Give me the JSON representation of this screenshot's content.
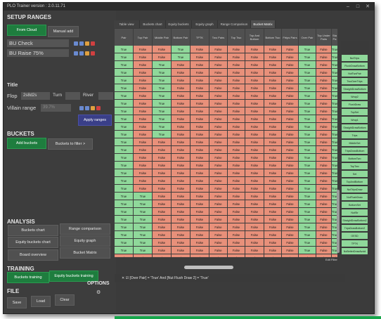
{
  "window": {
    "title": "PLO Trainer version : 2.0.11.71"
  },
  "setup": {
    "section": "SETUP RANGES",
    "from_cloud": "From Cloud",
    "manual_add": "Manual add",
    "ranges": [
      "BU Check",
      "BU Raise 75%"
    ]
  },
  "title_section": {
    "label": "Title"
  },
  "board": {
    "flop_label": "Flop",
    "flop_value": "2s8d2s",
    "turn_label": "Turn",
    "river_label": "River"
  },
  "villain": {
    "label": "Villain range",
    "value": "39.7%"
  },
  "apply_ranges": "Apply ranges",
  "buckets": {
    "section": "BUCKETS",
    "add": "Add buckets",
    "to_filter": "Buckets to filter >"
  },
  "analysis": {
    "section": "ANALYSIS",
    "buttons": [
      "Buckets chart",
      "Range comparison",
      "Equity buckets chart",
      "Equity graph",
      "Board overview",
      "Bucket Matrix"
    ]
  },
  "training": {
    "section": "TRAINING",
    "buckets_training": "Buckets training",
    "equity_training": "Equity buckets training"
  },
  "options": {
    "label": "OPTIONS"
  },
  "file": {
    "section": "FILE",
    "save": "Save",
    "load": "Load",
    "clear": "Clear"
  },
  "tabs": [
    "Table view",
    "Buckets chart",
    "Equity buckets",
    "Equity graph",
    "Range Comparison",
    "Bucket Matrix"
  ],
  "grid": {
    "headers": [
      "Pair",
      "Top Pair",
      "Middle Pair",
      "Bottom Pair",
      "TPTK",
      "Two Pairs",
      "Top Two",
      "Top And Bottom",
      "Bottom Two",
      "Ftrips Pairs",
      "Over Pair",
      "Top Under Pairs",
      "Sta Pa"
    ],
    "rows": [
      [
        1,
        0,
        0,
        1,
        0,
        0,
        0,
        0,
        0,
        0,
        1,
        0,
        1
      ],
      [
        1,
        0,
        0,
        1,
        0,
        0,
        0,
        0,
        0,
        0,
        1,
        0,
        1
      ],
      [
        1,
        0,
        1,
        0,
        0,
        0,
        0,
        0,
        0,
        0,
        1,
        0,
        1
      ],
      [
        1,
        0,
        1,
        0,
        0,
        0,
        0,
        0,
        0,
        0,
        1,
        0,
        1
      ],
      [
        1,
        0,
        1,
        0,
        0,
        0,
        0,
        0,
        0,
        0,
        1,
        0,
        1
      ],
      [
        1,
        0,
        1,
        0,
        0,
        0,
        0,
        0,
        0,
        0,
        1,
        0,
        1
      ],
      [
        1,
        0,
        1,
        0,
        0,
        0,
        0,
        0,
        0,
        0,
        1,
        0,
        1
      ],
      [
        1,
        0,
        1,
        0,
        0,
        0,
        0,
        0,
        0,
        0,
        1,
        0,
        1
      ],
      [
        1,
        0,
        1,
        0,
        0,
        0,
        0,
        0,
        0,
        0,
        1,
        0,
        1
      ],
      [
        1,
        0,
        1,
        0,
        0,
        0,
        0,
        0,
        0,
        0,
        1,
        0,
        1
      ],
      [
        1,
        0,
        1,
        0,
        0,
        0,
        0,
        0,
        0,
        0,
        1,
        0,
        1
      ],
      [
        1,
        0,
        1,
        0,
        0,
        0,
        0,
        0,
        0,
        0,
        1,
        0,
        1
      ],
      [
        1,
        0,
        0,
        0,
        0,
        0,
        0,
        0,
        0,
        0,
        1,
        0,
        1
      ],
      [
        1,
        0,
        0,
        0,
        0,
        0,
        0,
        0,
        0,
        0,
        1,
        0,
        1
      ],
      [
        1,
        0,
        0,
        0,
        0,
        0,
        0,
        0,
        0,
        0,
        1,
        0,
        1
      ],
      [
        1,
        0,
        0,
        0,
        0,
        0,
        0,
        0,
        0,
        0,
        1,
        0,
        1
      ],
      [
        1,
        0,
        0,
        0,
        0,
        0,
        0,
        0,
        0,
        0,
        1,
        0,
        1
      ],
      [
        1,
        0,
        0,
        0,
        0,
        0,
        0,
        0,
        0,
        0,
        1,
        0,
        1
      ],
      [
        1,
        0,
        0,
        0,
        0,
        0,
        0,
        0,
        0,
        0,
        1,
        0,
        1
      ],
      [
        1,
        1,
        0,
        0,
        0,
        0,
        0,
        0,
        0,
        0,
        1,
        0,
        1
      ],
      [
        1,
        1,
        0,
        0,
        0,
        0,
        0,
        0,
        0,
        0,
        1,
        0,
        1
      ],
      [
        1,
        1,
        0,
        0,
        0,
        0,
        0,
        0,
        0,
        0,
        1,
        0,
        1
      ],
      [
        1,
        1,
        0,
        0,
        0,
        0,
        0,
        0,
        0,
        0,
        1,
        0,
        1
      ],
      [
        1,
        1,
        0,
        0,
        0,
        0,
        0,
        0,
        0,
        0,
        1,
        0,
        1
      ],
      [
        1,
        1,
        0,
        0,
        0,
        0,
        0,
        0,
        0,
        0,
        1,
        0,
        1
      ],
      [
        1,
        1,
        0,
        0,
        0,
        0,
        0,
        0,
        0,
        0,
        1,
        0,
        1
      ],
      [
        1,
        1,
        0,
        0,
        0,
        0,
        0,
        0,
        0,
        0,
        1,
        0,
        1
      ],
      [
        0,
        0,
        0,
        0,
        0,
        0,
        0,
        0,
        0,
        0,
        0,
        0,
        0
      ]
    ],
    "true_label": "True",
    "false_label": "False"
  },
  "right_list": {
    "header": "Ftps Pairs Party",
    "items": [
      "NutTrips",
      "FlushDrawBottom",
      "NutTwoPair",
      "TwoOverTrips",
      "StraightDrawBottom",
      "Wrap2",
      "FlushDraw",
      "TopSet",
      "Wrap1",
      "StraightDrawBottom",
      "Trips",
      "MiddleSet",
      "TripsDrawBottom",
      "BottomTwo",
      "TopTwo",
      "Set",
      "TopAndBottom",
      "NutTripsDraw",
      "NutFlushDraw",
      "BottomSet",
      "NutStr",
      "StraightDrawBottom2",
      "TripsDrawBottom2",
      "OESD",
      "TPTK",
      "NoBetterDrawAvoid"
    ]
  },
  "filter": {
    "text": "[Over Pair] = 'True' And [Nut Flush Draw 2] = 'True'",
    "edit": "Edit Filter"
  },
  "colors": {
    "true_cell": "#8fd89a",
    "false_cell": "#e8907a",
    "green_button": "#1e7d3e",
    "blue_button": "#3a3f88"
  }
}
